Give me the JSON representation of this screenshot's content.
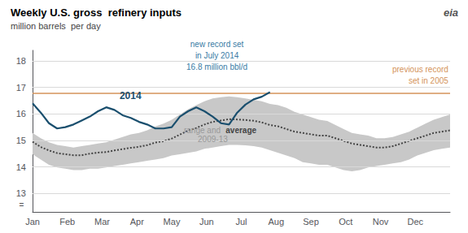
{
  "chart_data": {
    "type": "line",
    "title": "Weekly U.S. gross  refinery inputs",
    "subtitle": "million barrels  per day",
    "x": [
      0,
      0.235294,
      0.470588,
      0.705882,
      0.941176,
      1.176471,
      1.411765,
      1.647059,
      1.882353,
      2.117647,
      2.352941,
      2.588235,
      2.823529,
      3.058824,
      3.294118,
      3.529412,
      3.764706,
      4,
      4.235294,
      4.470588,
      4.705882,
      4.941176,
      5.176471,
      5.411765,
      5.647059,
      5.882353,
      6.117647,
      6.352941,
      6.588235,
      6.823529,
      7.058824,
      7.294118,
      7.529412,
      7.764706,
      8,
      8.235294,
      8.470588,
      8.705882,
      8.941176,
      9.176471,
      9.411765,
      9.647059,
      9.882353,
      10.117647,
      10.352941,
      10.588235,
      10.823529,
      11.058824,
      11.294118,
      11.529412,
      11.764706,
      12
    ],
    "xlim": [
      0,
      12
    ],
    "xticks": [
      {
        "value": 0,
        "label": "Jan"
      },
      {
        "value": 1,
        "label": "Feb"
      },
      {
        "value": 2,
        "label": "Mar"
      },
      {
        "value": 3,
        "label": "Apr"
      },
      {
        "value": 4,
        "label": "May"
      },
      {
        "value": 5,
        "label": "Jun"
      },
      {
        "value": 6,
        "label": "Jul"
      },
      {
        "value": 7,
        "label": "Aug"
      },
      {
        "value": 8,
        "label": "Sep"
      },
      {
        "value": 9,
        "label": "Oct"
      },
      {
        "value": 10,
        "label": "Nov"
      },
      {
        "value": 11,
        "label": "Dec"
      }
    ],
    "ylim": [
      12.3,
      18.4
    ],
    "yticks": [
      13,
      14,
      15,
      16,
      17,
      18
    ],
    "grid": "y",
    "series": [
      {
        "type": "band",
        "color": "#c8c8c8",
        "low": [
          14.48,
          14.28,
          14.08,
          13.98,
          13.93,
          13.88,
          13.88,
          13.93,
          13.93,
          13.98,
          14.03,
          14.08,
          14.13,
          14.18,
          14.23,
          14.28,
          14.33,
          14.43,
          14.48,
          14.53,
          14.58,
          14.68,
          14.73,
          14.78,
          14.83,
          14.83,
          14.81,
          14.78,
          14.73,
          14.63,
          14.53,
          14.43,
          14.33,
          14.18,
          14.13,
          14.08,
          14.08,
          13.98,
          13.88,
          13.83,
          13.88,
          13.98,
          14.03,
          14.08,
          14.13,
          14.18,
          14.28,
          14.43,
          14.53,
          14.63,
          14.68,
          14.73
        ],
        "high": [
          15.28,
          15.08,
          14.93,
          14.83,
          14.78,
          14.73,
          14.78,
          14.83,
          14.88,
          14.93,
          15.03,
          15.13,
          15.23,
          15.28,
          15.38,
          15.53,
          15.63,
          15.78,
          15.98,
          16.18,
          16.33,
          16.48,
          16.58,
          16.63,
          16.66,
          16.63,
          16.58,
          16.53,
          16.48,
          16.38,
          16.33,
          16.23,
          16.08,
          15.98,
          15.88,
          15.78,
          15.73,
          15.58,
          15.43,
          15.28,
          15.23,
          15.18,
          15.08,
          15.08,
          15.13,
          15.23,
          15.33,
          15.48,
          15.63,
          15.78,
          15.88,
          15.98
        ]
      },
      {
        "type": "line",
        "color": "#444444",
        "line_style": "dotted",
        "values": [
          14.95,
          14.75,
          14.62,
          14.52,
          14.48,
          14.44,
          14.44,
          14.5,
          14.54,
          14.56,
          14.62,
          14.67,
          14.72,
          14.76,
          14.82,
          14.92,
          14.97,
          15.07,
          15.22,
          15.37,
          15.47,
          15.6,
          15.7,
          15.75,
          15.8,
          15.79,
          15.77,
          15.74,
          15.68,
          15.58,
          15.53,
          15.43,
          15.33,
          15.28,
          15.23,
          15.18,
          15.18,
          15.08,
          14.98,
          14.88,
          14.83,
          14.78,
          14.73,
          14.73,
          14.78,
          14.88,
          14.98,
          15.08,
          15.18,
          15.28,
          15.33,
          15.38
        ]
      },
      {
        "type": "line",
        "color": "#1a4f6e",
        "line_style": "solid",
        "values": [
          16.4,
          16.05,
          15.65,
          15.45,
          15.5,
          15.6,
          15.75,
          15.9,
          16.1,
          16.25,
          16.15,
          15.95,
          15.85,
          15.7,
          15.6,
          15.45,
          15.45,
          15.5,
          15.9,
          16.1,
          16.25,
          16.1,
          15.9,
          15.65,
          15.6,
          16.05,
          16.35,
          16.55,
          16.65,
          16.82,
          null,
          null,
          null,
          null,
          null,
          null,
          null,
          null,
          null,
          null,
          null,
          null,
          null,
          null,
          null,
          null,
          null,
          null,
          null,
          null,
          null,
          null
        ]
      }
    ],
    "reference_lines": [
      {
        "value": 16.79,
        "color": "#d4935a"
      }
    ],
    "annotations": [
      {
        "text": "new record set\nin July 2014\n16.8 million bbl/d",
        "color": "#3a7ca5"
      },
      {
        "text": "previous record\nset in 2005",
        "color": "#d4935a"
      },
      {
        "text": "2014",
        "color": "#1a4f6e"
      },
      {
        "text": "range and",
        "color": "#999999"
      },
      {
        "text": "average",
        "color": "#444444"
      },
      {
        "text": "2009-13",
        "color": "#999999"
      },
      {
        "text": "=",
        "color": "#555555"
      },
      {
        "text": "eia",
        "color": "#555555"
      }
    ]
  }
}
